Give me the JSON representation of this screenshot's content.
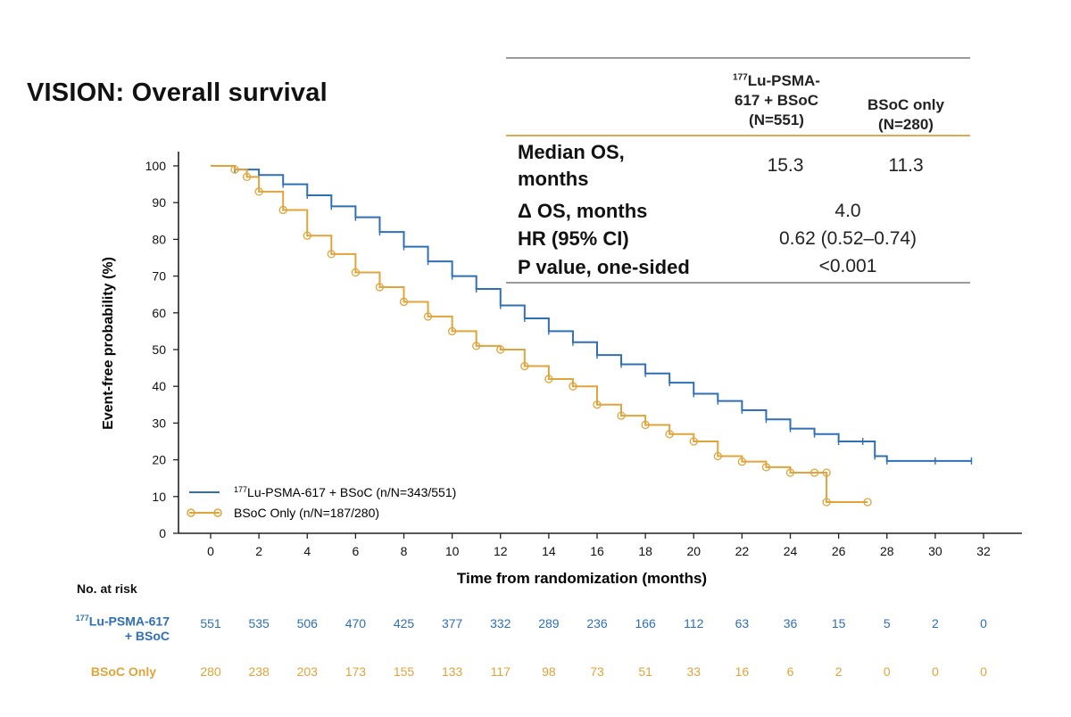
{
  "page": {
    "title": "VISION: Overall survival"
  },
  "stats_table": {
    "col1_line1": "Lu-PSMA-",
    "col1_sup": "177",
    "col1_line2": "617 + BSoC",
    "col1_line3": "(N=551)",
    "col2_line1": "BSoC only",
    "col2_line2": "(N=280)",
    "rows": [
      {
        "label_line1": "Median OS,",
        "label_line2": "months",
        "v1": "15.3",
        "v2": "11.3"
      },
      {
        "label": "Δ OS, months",
        "v": "4.0"
      },
      {
        "label": "HR (95% CI)",
        "v": "0.62 (0.52–0.74)"
      },
      {
        "label": "P value, one-sided",
        "v": "<0.001"
      }
    ]
  },
  "colors": {
    "treatment": "#2f6fb5",
    "control": "#e0a43a"
  },
  "chart_data": {
    "type": "line",
    "xlabel": "Time from randomization (months)",
    "ylabel": "Event-free probability (%)",
    "xlim": [
      0,
      32
    ],
    "ylim": [
      0,
      100
    ],
    "xticks": [
      0,
      2,
      4,
      6,
      8,
      10,
      12,
      14,
      16,
      18,
      20,
      22,
      24,
      26,
      28,
      30,
      32
    ],
    "yticks": [
      0,
      10,
      20,
      30,
      40,
      50,
      60,
      70,
      80,
      90,
      100
    ],
    "legend_position": "bottom-left",
    "series": [
      {
        "name": "Lu-PSMA-617 + BSoC (n/N=343/551)",
        "name_sup": "177",
        "points": [
          [
            0,
            100
          ],
          [
            1,
            99
          ],
          [
            2,
            97.5
          ],
          [
            3,
            95
          ],
          [
            4,
            92
          ],
          [
            5,
            89
          ],
          [
            6,
            86
          ],
          [
            7,
            82
          ],
          [
            8,
            78
          ],
          [
            9,
            74
          ],
          [
            10,
            70
          ],
          [
            11,
            66.5
          ],
          [
            12,
            62
          ],
          [
            13,
            58.5
          ],
          [
            14,
            55
          ],
          [
            15,
            52
          ],
          [
            16,
            48.5
          ],
          [
            17,
            46
          ],
          [
            18,
            43.5
          ],
          [
            19,
            41
          ],
          [
            20,
            38
          ],
          [
            21,
            36
          ],
          [
            22,
            33.5
          ],
          [
            23,
            31
          ],
          [
            24,
            28.5
          ],
          [
            25,
            27
          ],
          [
            26,
            25
          ],
          [
            27,
            25
          ],
          [
            27.5,
            21
          ],
          [
            28,
            19.7
          ],
          [
            30,
            19.7
          ],
          [
            31.5,
            19.7
          ]
        ]
      },
      {
        "name": "BSoC Only (n/N=187/280)",
        "points": [
          [
            0,
            100
          ],
          [
            1,
            99
          ],
          [
            1.5,
            97
          ],
          [
            2,
            93
          ],
          [
            3,
            88
          ],
          [
            4,
            81
          ],
          [
            5,
            76
          ],
          [
            6,
            71
          ],
          [
            7,
            67
          ],
          [
            8,
            63
          ],
          [
            9,
            59
          ],
          [
            10,
            55
          ],
          [
            11,
            51
          ],
          [
            12,
            50
          ],
          [
            13,
            45.5
          ],
          [
            14,
            42
          ],
          [
            15,
            40
          ],
          [
            16,
            35
          ],
          [
            17,
            32
          ],
          [
            18,
            29.5
          ],
          [
            19,
            27
          ],
          [
            20,
            25
          ],
          [
            21,
            21
          ],
          [
            22,
            19.5
          ],
          [
            23,
            18
          ],
          [
            24,
            16.5
          ],
          [
            25,
            16.5
          ],
          [
            25.5,
            16.5
          ],
          [
            25.5,
            8.5
          ],
          [
            27.2,
            8.5
          ]
        ]
      }
    ]
  },
  "at_risk": {
    "title": "No. at risk",
    "treatment_label_sup": "177",
    "treatment_label_line1": "Lu-PSMA-617",
    "treatment_label_line2": "+ BSoC",
    "control_label": "BSoC Only",
    "months": [
      0,
      2,
      4,
      6,
      8,
      10,
      12,
      14,
      16,
      18,
      20,
      22,
      24,
      26,
      28,
      30,
      32
    ],
    "treatment": [
      "551",
      "535",
      "506",
      "470",
      "425",
      "377",
      "332",
      "289",
      "236",
      "166",
      "112",
      "63",
      "36",
      "15",
      "5",
      "2",
      "0"
    ],
    "control": [
      "280",
      "238",
      "203",
      "173",
      "155",
      "133",
      "117",
      "98",
      "73",
      "51",
      "33",
      "16",
      "6",
      "2",
      "0",
      "0",
      "0"
    ]
  }
}
